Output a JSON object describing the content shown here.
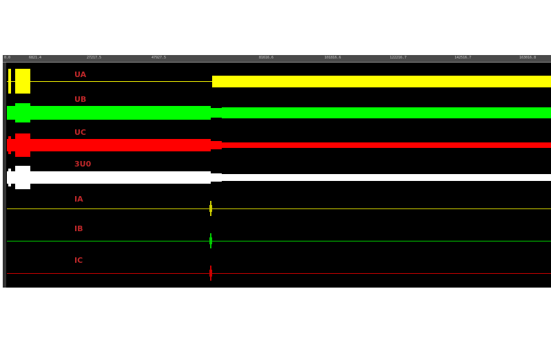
{
  "ruler": {
    "ticks": [
      "0.0",
      "6821.4",
      "27217.5",
      "47927.5",
      "81616.6",
      "101816.6",
      "122216.7",
      "142516.7",
      "163016.8"
    ]
  },
  "channels": [
    {
      "name": "UA",
      "color": "#ffff00"
    },
    {
      "name": "UB",
      "color": "#00ff00"
    },
    {
      "name": "UC",
      "color": "#ff0000"
    },
    {
      "name": "3U0",
      "color": "#ffffff"
    },
    {
      "name": "IA",
      "color": "#cccc00"
    },
    {
      "name": "IB",
      "color": "#00cc00"
    },
    {
      "name": "IC",
      "color": "#cc0000"
    }
  ]
}
